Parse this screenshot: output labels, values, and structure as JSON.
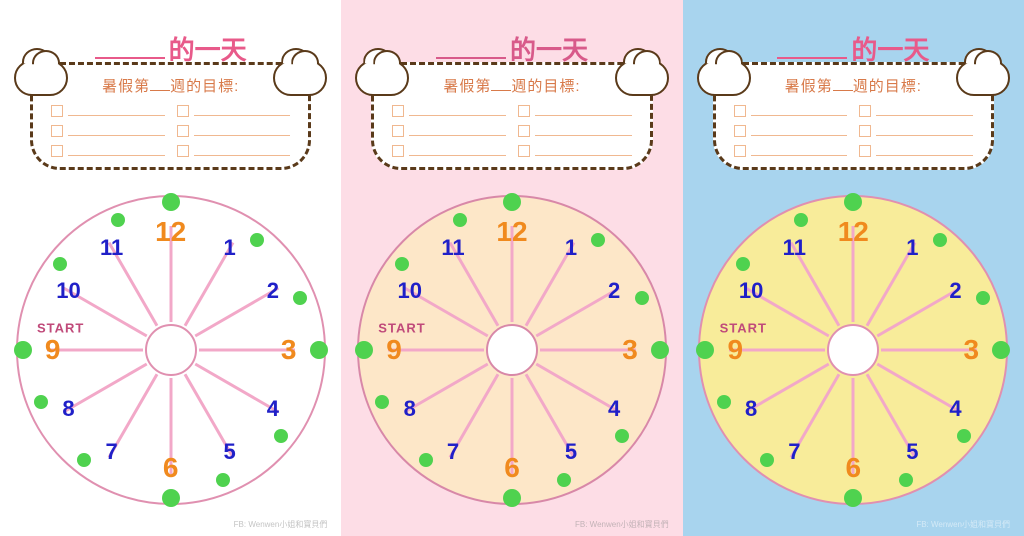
{
  "title_suffix": "的一天",
  "goal_prefix": "暑假第",
  "goal_suffix": "週的目標:",
  "start_label": "START",
  "credit": "FB: Wenwen小姐和寶貝們",
  "checkbox_rows": 3,
  "clock": {
    "numbers": [
      "12",
      "1",
      "2",
      "3",
      "4",
      "5",
      "6",
      "7",
      "8",
      "9",
      "10",
      "11"
    ],
    "big_hours": [
      12,
      3,
      6,
      9
    ],
    "num_color_blue": "#2020c8",
    "num_color_orange": "#f08a1e",
    "dot_color": "#4fd24f",
    "ray_color": "#f2a8c8",
    "num_radius": 118,
    "dot_radius": 140,
    "big_dot_radius": 148
  },
  "panels": [
    {
      "bg": "#ffffff",
      "title_color": "#e85a8a",
      "goal_text_color": "#d87a4a",
      "goal_line_color": "#f0b890",
      "clock_fill": "#ffffff",
      "clock_border": "#e090b0",
      "center_border": "#e090b0",
      "start_color": "#c04a7a"
    },
    {
      "bg": "#fddde6",
      "title_color": "#d85a8a",
      "goal_text_color": "#d87a4a",
      "goal_line_color": "#f0b890",
      "clock_fill": "#fde7c8",
      "clock_border": "#d888a8",
      "center_border": "#d888a8",
      "start_color": "#c04a7a"
    },
    {
      "bg": "#a8d4ee",
      "title_color": "#e85a8a",
      "goal_text_color": "#d87a4a",
      "goal_line_color": "#f0b890",
      "clock_fill": "#f8ec9a",
      "clock_border": "#e090b0",
      "center_border": "#e090b0",
      "start_color": "#c04a7a"
    }
  ]
}
